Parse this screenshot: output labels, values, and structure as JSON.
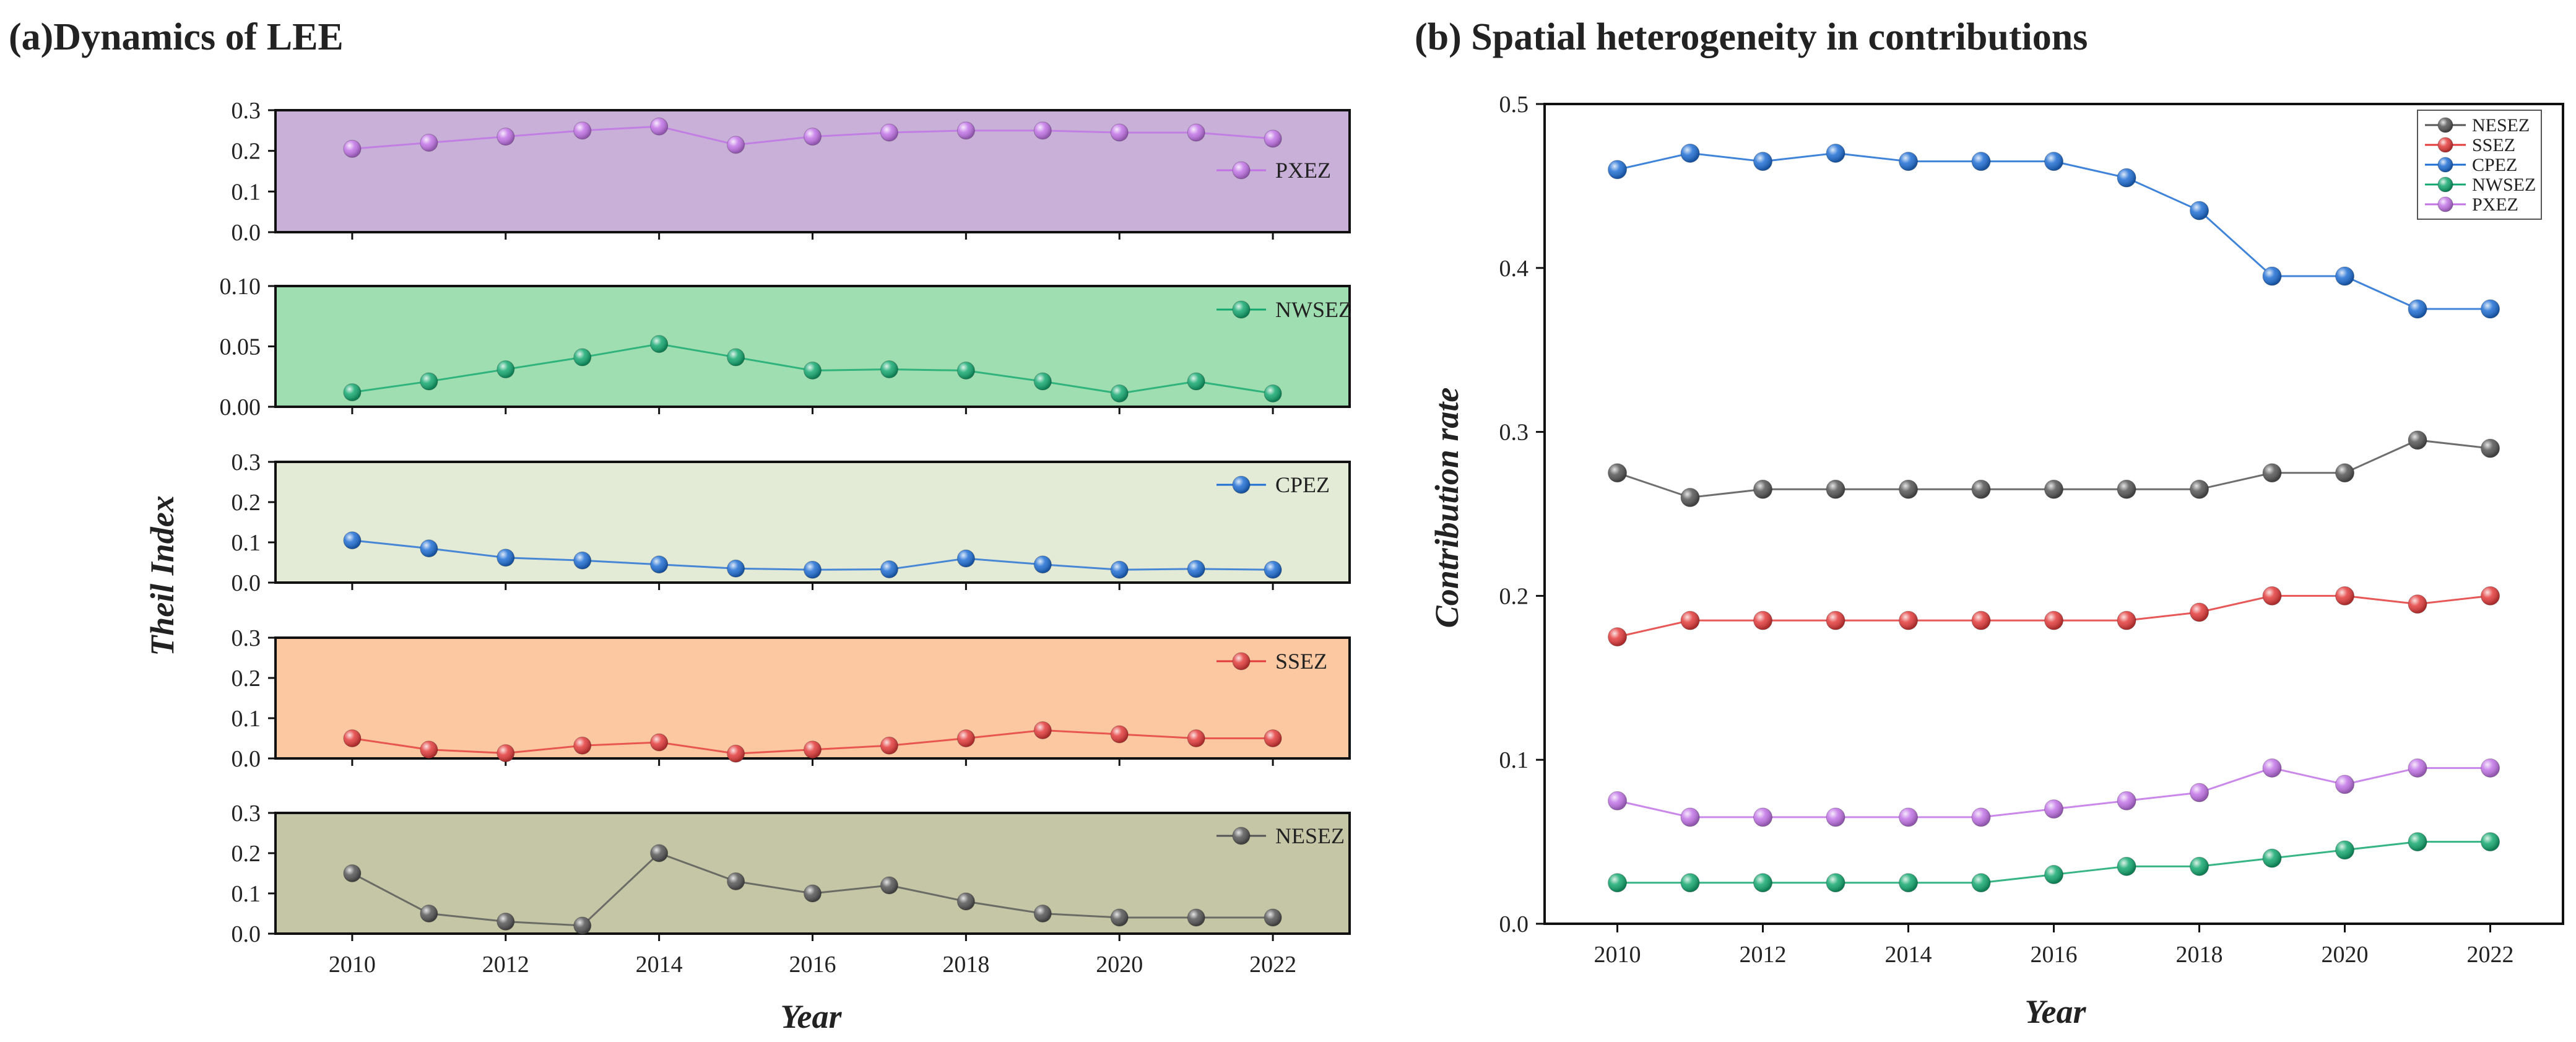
{
  "chart_data": [
    {
      "id": "a",
      "type": "line",
      "title": "(a)Dynamics of LEE",
      "xlabel": "Year",
      "ylabel": "Theil Index",
      "x": [
        2010,
        2011,
        2012,
        2013,
        2014,
        2015,
        2016,
        2017,
        2018,
        2019,
        2020,
        2021,
        2022
      ],
      "xticks": [
        2010,
        2012,
        2014,
        2016,
        2018,
        2020,
        2022
      ],
      "xlim": [
        2009,
        2023
      ],
      "panels": [
        {
          "name": "PXEZ",
          "color": "#c173e6",
          "bg": "#c9b0d8",
          "ylim": [
            0,
            0.3
          ],
          "yticks": [
            "0.0",
            "0.1",
            "0.2",
            "0.3"
          ],
          "values": [
            0.205,
            0.22,
            0.235,
            0.25,
            0.26,
            0.215,
            0.235,
            0.245,
            0.25,
            0.25,
            0.245,
            0.245,
            0.23
          ]
        },
        {
          "name": "NWSEZ",
          "color": "#14a870",
          "bg": "#9edeb0",
          "ylim": [
            0,
            0.1
          ],
          "yticks": [
            "0.00",
            "0.05",
            "0.10"
          ],
          "values": [
            0.012,
            0.021,
            0.031,
            0.041,
            0.052,
            0.041,
            0.03,
            0.031,
            0.03,
            0.021,
            0.011,
            0.021,
            0.011
          ]
        },
        {
          "name": "CPEZ",
          "color": "#1f6ed4",
          "bg": "#e3ead6",
          "ylim": [
            0,
            0.3
          ],
          "yticks": [
            "0.0",
            "0.1",
            "0.2",
            "0.3"
          ],
          "values": [
            0.105,
            0.085,
            0.062,
            0.055,
            0.045,
            0.035,
            0.032,
            0.033,
            0.06,
            0.045,
            0.032,
            0.034,
            0.032
          ]
        },
        {
          "name": "SSEZ",
          "color": "#e33b3b",
          "bg": "#fbc8a1",
          "ylim": [
            0,
            0.3
          ],
          "yticks": [
            "0.0",
            "0.1",
            "0.2",
            "0.3"
          ],
          "values": [
            0.05,
            0.022,
            0.013,
            0.032,
            0.04,
            0.012,
            0.022,
            0.032,
            0.05,
            0.07,
            0.06,
            0.05,
            0.05
          ]
        },
        {
          "name": "NESEZ",
          "color": "#555555",
          "bg": "#c4c6a6",
          "ylim": [
            0,
            0.3
          ],
          "yticks": [
            "0.0",
            "0.1",
            "0.2",
            "0.3"
          ],
          "values": [
            0.15,
            0.05,
            0.03,
            0.02,
            0.2,
            0.13,
            0.1,
            0.12,
            0.08,
            0.05,
            0.04,
            0.04,
            0.04
          ]
        }
      ]
    },
    {
      "id": "b",
      "type": "line",
      "title": "(b) Spatial heterogeneity in contributions",
      "xlabel": "Year",
      "ylabel": "Contribution rate",
      "x": [
        2010,
        2011,
        2012,
        2013,
        2014,
        2015,
        2016,
        2017,
        2018,
        2019,
        2020,
        2021,
        2022
      ],
      "xticks": [
        2010,
        2012,
        2014,
        2016,
        2018,
        2020,
        2022
      ],
      "xlim": [
        2009,
        2023
      ],
      "ylim": [
        0,
        0.5
      ],
      "yticks": [
        "0.0",
        "0.1",
        "0.2",
        "0.3",
        "0.4",
        "0.5"
      ],
      "legend_position": "top-right",
      "series": [
        {
          "name": "NESEZ",
          "color": "#555555",
          "values": [
            0.275,
            0.26,
            0.265,
            0.265,
            0.265,
            0.265,
            0.265,
            0.265,
            0.265,
            0.275,
            0.275,
            0.295,
            0.29
          ]
        },
        {
          "name": "SSEZ",
          "color": "#e33b3b",
          "values": [
            0.175,
            0.185,
            0.185,
            0.185,
            0.185,
            0.185,
            0.185,
            0.185,
            0.19,
            0.2,
            0.2,
            0.195,
            0.2
          ]
        },
        {
          "name": "CPEZ",
          "color": "#1f6ed4",
          "values": [
            0.46,
            0.47,
            0.465,
            0.47,
            0.465,
            0.465,
            0.465,
            0.455,
            0.435,
            0.395,
            0.395,
            0.375,
            0.375
          ]
        },
        {
          "name": "NWSEZ",
          "color": "#14a870",
          "values": [
            0.025,
            0.025,
            0.025,
            0.025,
            0.025,
            0.025,
            0.03,
            0.035,
            0.035,
            0.04,
            0.045,
            0.05,
            0.05
          ]
        },
        {
          "name": "PXEZ",
          "color": "#c173e6",
          "values": [
            0.075,
            0.065,
            0.065,
            0.065,
            0.065,
            0.065,
            0.07,
            0.075,
            0.08,
            0.095,
            0.085,
            0.095,
            0.095
          ]
        }
      ]
    }
  ]
}
